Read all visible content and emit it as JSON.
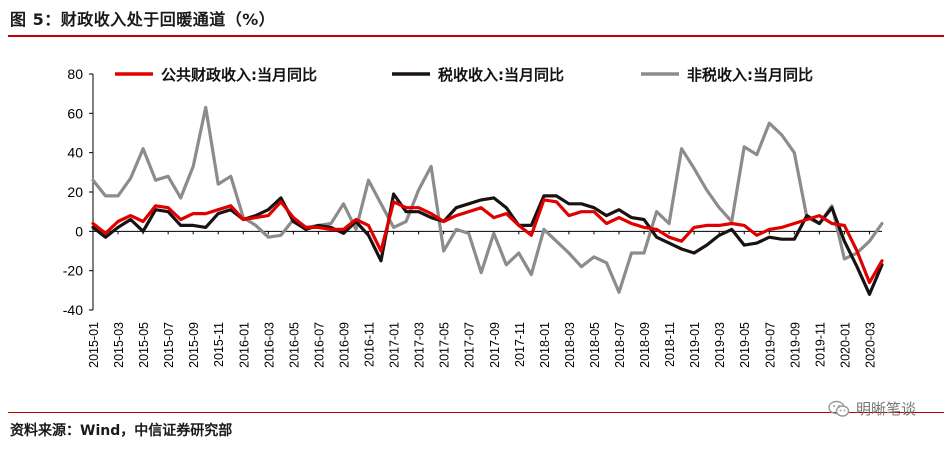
{
  "title": "图 5：财政收入处于回暖通道（%）",
  "source": "资料来源：Wind，中信证券研究部",
  "watermark": "明晰笔谈",
  "chart_data": {
    "type": "line",
    "title": "财政收入处于回暖通道（%）",
    "xlabel": "",
    "ylabel": "",
    "ylim": [
      -40,
      80
    ],
    "yticks": [
      -40,
      -20,
      0,
      20,
      40,
      60,
      80
    ],
    "legend_position": "top",
    "categories": [
      "2015-01",
      "2015-02",
      "2015-03",
      "2015-04",
      "2015-05",
      "2015-06",
      "2015-07",
      "2015-08",
      "2015-09",
      "2015-10",
      "2015-11",
      "2015-12",
      "2016-01",
      "2016-02",
      "2016-03",
      "2016-04",
      "2016-05",
      "2016-06",
      "2016-07",
      "2016-08",
      "2016-09",
      "2016-10",
      "2016-11",
      "2016-12",
      "2017-01",
      "2017-02",
      "2017-03",
      "2017-04",
      "2017-05",
      "2017-06",
      "2017-07",
      "2017-08",
      "2017-09",
      "2017-10",
      "2017-11",
      "2017-12",
      "2018-01",
      "2018-02",
      "2018-03",
      "2018-04",
      "2018-05",
      "2018-06",
      "2018-07",
      "2018-08",
      "2018-09",
      "2018-10",
      "2018-11",
      "2018-12",
      "2019-01",
      "2019-02",
      "2019-03",
      "2019-04",
      "2019-05",
      "2019-06",
      "2019-07",
      "2019-08",
      "2019-09",
      "2019-10",
      "2019-11",
      "2019-12",
      "2020-01",
      "2020-02",
      "2020-03",
      "2020-04"
    ],
    "xtick_labels": [
      "2015-01",
      "2015-03",
      "2015-05",
      "2015-07",
      "2015-09",
      "2015-11",
      "2016-01",
      "2016-03",
      "2016-05",
      "2016-07",
      "2016-09",
      "2016-11",
      "2017-01",
      "2017-03",
      "2017-05",
      "2017-07",
      "2017-09",
      "2017-11",
      "2018-01",
      "2018-03",
      "2018-05",
      "2018-07",
      "2018-09",
      "2018-11",
      "2019-01",
      "2019-03",
      "2019-05",
      "2019-07",
      "2019-09",
      "2019-11",
      "2020-01",
      "2020-03"
    ],
    "series": [
      {
        "name": "公共财政收入:当月同比",
        "color": "#e00000",
        "values": [
          4,
          -1,
          5,
          8,
          5,
          13,
          12,
          6,
          9,
          9,
          11,
          13,
          6,
          7,
          8,
          15,
          7,
          2,
          2,
          1,
          1,
          6,
          3,
          -10,
          15,
          12,
          12,
          9,
          5,
          8,
          10,
          12,
          7,
          9,
          3,
          -2,
          16,
          15,
          8,
          10,
          10,
          4,
          7,
          4,
          2,
          1,
          -3,
          -5,
          2,
          3,
          3,
          4,
          3,
          -2,
          1,
          2,
          4,
          6,
          8,
          4,
          3,
          -10,
          -26,
          -15
        ]
      },
      {
        "name": "税收收入:当月同比",
        "color": "#1a1210",
        "values": [
          2,
          -3,
          2,
          6,
          0,
          11,
          10,
          3,
          3,
          2,
          9,
          11,
          6,
          8,
          11,
          17,
          5,
          1,
          3,
          2,
          -1,
          5,
          -2,
          -15,
          19,
          10,
          10,
          7,
          5,
          12,
          14,
          16,
          17,
          12,
          3,
          3,
          18,
          18,
          14,
          14,
          12,
          8,
          11,
          7,
          6,
          -3,
          -6,
          -9,
          -11,
          -7,
          -2,
          1,
          -7,
          -6,
          -3,
          -4,
          -4,
          8,
          4,
          12,
          -5,
          -18,
          -32,
          -17
        ]
      },
      {
        "name": "非税收入:当月同比",
        "color": "#8c8c8c",
        "values": [
          26,
          18,
          18,
          27,
          42,
          26,
          28,
          17,
          33,
          63,
          24,
          28,
          7,
          3,
          -3,
          -2,
          6,
          2,
          3,
          4,
          14,
          1,
          26,
          14,
          2,
          5,
          21,
          33,
          -10,
          1,
          -1,
          -21,
          -1,
          -17,
          -11,
          -22,
          1,
          -5,
          -11,
          -18,
          -13,
          -16,
          -31,
          -11,
          -11,
          10,
          4,
          42,
          32,
          21,
          12,
          5,
          43,
          39,
          55,
          49,
          40,
          7,
          4,
          13,
          -14,
          -11,
          -5,
          4
        ]
      }
    ]
  }
}
